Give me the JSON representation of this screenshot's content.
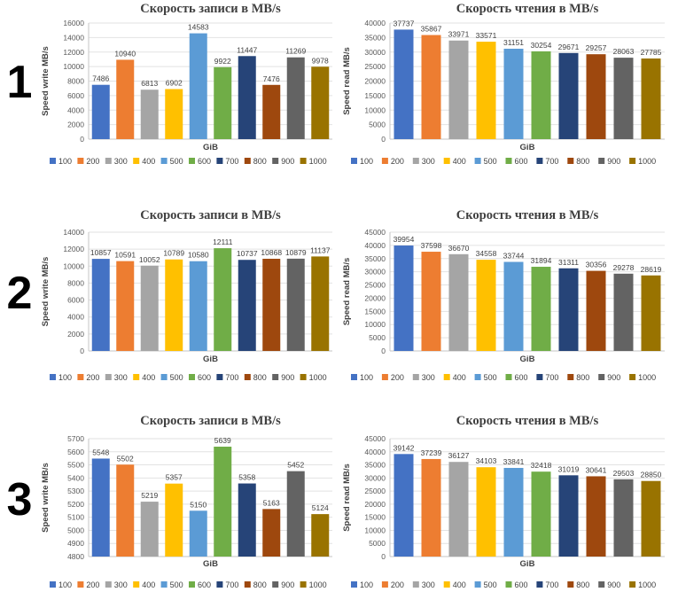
{
  "rows": [
    {
      "label": "1"
    },
    {
      "label": "2"
    },
    {
      "label": "3"
    }
  ],
  "categories": [
    "100",
    "200",
    "300",
    "400",
    "500",
    "600",
    "700",
    "800",
    "900",
    "1000"
  ],
  "series_colors": [
    "#4472C4",
    "#ED7D31",
    "#A5A5A5",
    "#FFC000",
    "#5B9BD5",
    "#70AD47",
    "#264478",
    "#9E480E",
    "#636363",
    "#997300"
  ],
  "style_colors": {
    "title": "#3F3F3F",
    "tick_label": "#595959",
    "data_label": "#404040",
    "axis_label": "#404040",
    "legend_label": "#404040",
    "gridline": "#E2E2E2",
    "axis_line": "#C6C6C6"
  },
  "chart_data": [
    {
      "type": "bar",
      "title": "Скорость записи в MB/s",
      "ylabel": "Speed write MB/s",
      "xlabel": "GiB",
      "legend_position": "bottom",
      "grid": true,
      "categories": [
        "100",
        "200",
        "300",
        "400",
        "500",
        "600",
        "700",
        "800",
        "900",
        "1000"
      ],
      "values": [
        7486,
        10940,
        6813,
        6902,
        14583,
        9922,
        11447,
        7476,
        11269,
        9978
      ],
      "ylim": [
        0,
        16000
      ],
      "ytick_step": 2000
    },
    {
      "type": "bar",
      "title": "Скорость чтения в MB/s",
      "ylabel": "Speed read MB/s",
      "xlabel": "GiB",
      "legend_position": "bottom",
      "grid": true,
      "categories": [
        "100",
        "200",
        "300",
        "400",
        "500",
        "600",
        "700",
        "800",
        "900",
        "1000"
      ],
      "values": [
        37737,
        35867,
        33971,
        33571,
        31151,
        30254,
        29671,
        29257,
        28063,
        27785
      ],
      "ylim": [
        0,
        40000
      ],
      "ytick_step": 5000
    },
    {
      "type": "bar",
      "title": "Скорость записи в MB/s",
      "ylabel": "Speed write MB/s",
      "xlabel": "GiB",
      "legend_position": "bottom",
      "grid": true,
      "categories": [
        "100",
        "200",
        "300",
        "400",
        "500",
        "600",
        "700",
        "800",
        "900",
        "1000"
      ],
      "values": [
        10857,
        10591,
        10052,
        10789,
        10580,
        12111,
        10737,
        10868,
        10879,
        11137
      ],
      "ylim": [
        0,
        14000
      ],
      "ytick_step": 2000
    },
    {
      "type": "bar",
      "title": "Скорость чтения в MB/s",
      "ylabel": "Speed read MB/s",
      "xlabel": "GiB",
      "legend_position": "bottom",
      "grid": true,
      "categories": [
        "100",
        "200",
        "300",
        "400",
        "500",
        "600",
        "700",
        "800",
        "900",
        "1000"
      ],
      "values": [
        39954,
        37598,
        36670,
        34558,
        33744,
        31894,
        31311,
        30356,
        29278,
        28619
      ],
      "ylim": [
        0,
        45000
      ],
      "ytick_step": 5000
    },
    {
      "type": "bar",
      "title": "Скорость записи в MB/s",
      "ylabel": "Speed write MB/s",
      "xlabel": "GiB",
      "legend_position": "bottom",
      "grid": true,
      "categories": [
        "100",
        "200",
        "300",
        "400",
        "500",
        "600",
        "700",
        "800",
        "900",
        "1000"
      ],
      "values": [
        5548,
        5502,
        5219,
        5357,
        5150,
        5639,
        5358,
        5163,
        5452,
        5124
      ],
      "ylim": [
        4800,
        5700
      ],
      "ytick_step": 100
    },
    {
      "type": "bar",
      "title": "Скорость чтения в MB/s",
      "ylabel": "Speed read MB/s",
      "xlabel": "GiB",
      "legend_position": "bottom",
      "grid": true,
      "categories": [
        "100",
        "200",
        "300",
        "400",
        "500",
        "600",
        "700",
        "800",
        "900",
        "1000"
      ],
      "values": [
        39142,
        37239,
        36127,
        34103,
        33841,
        32418,
        31019,
        30641,
        29503,
        28850
      ],
      "ylim": [
        0,
        45000
      ],
      "ytick_step": 5000
    }
  ]
}
